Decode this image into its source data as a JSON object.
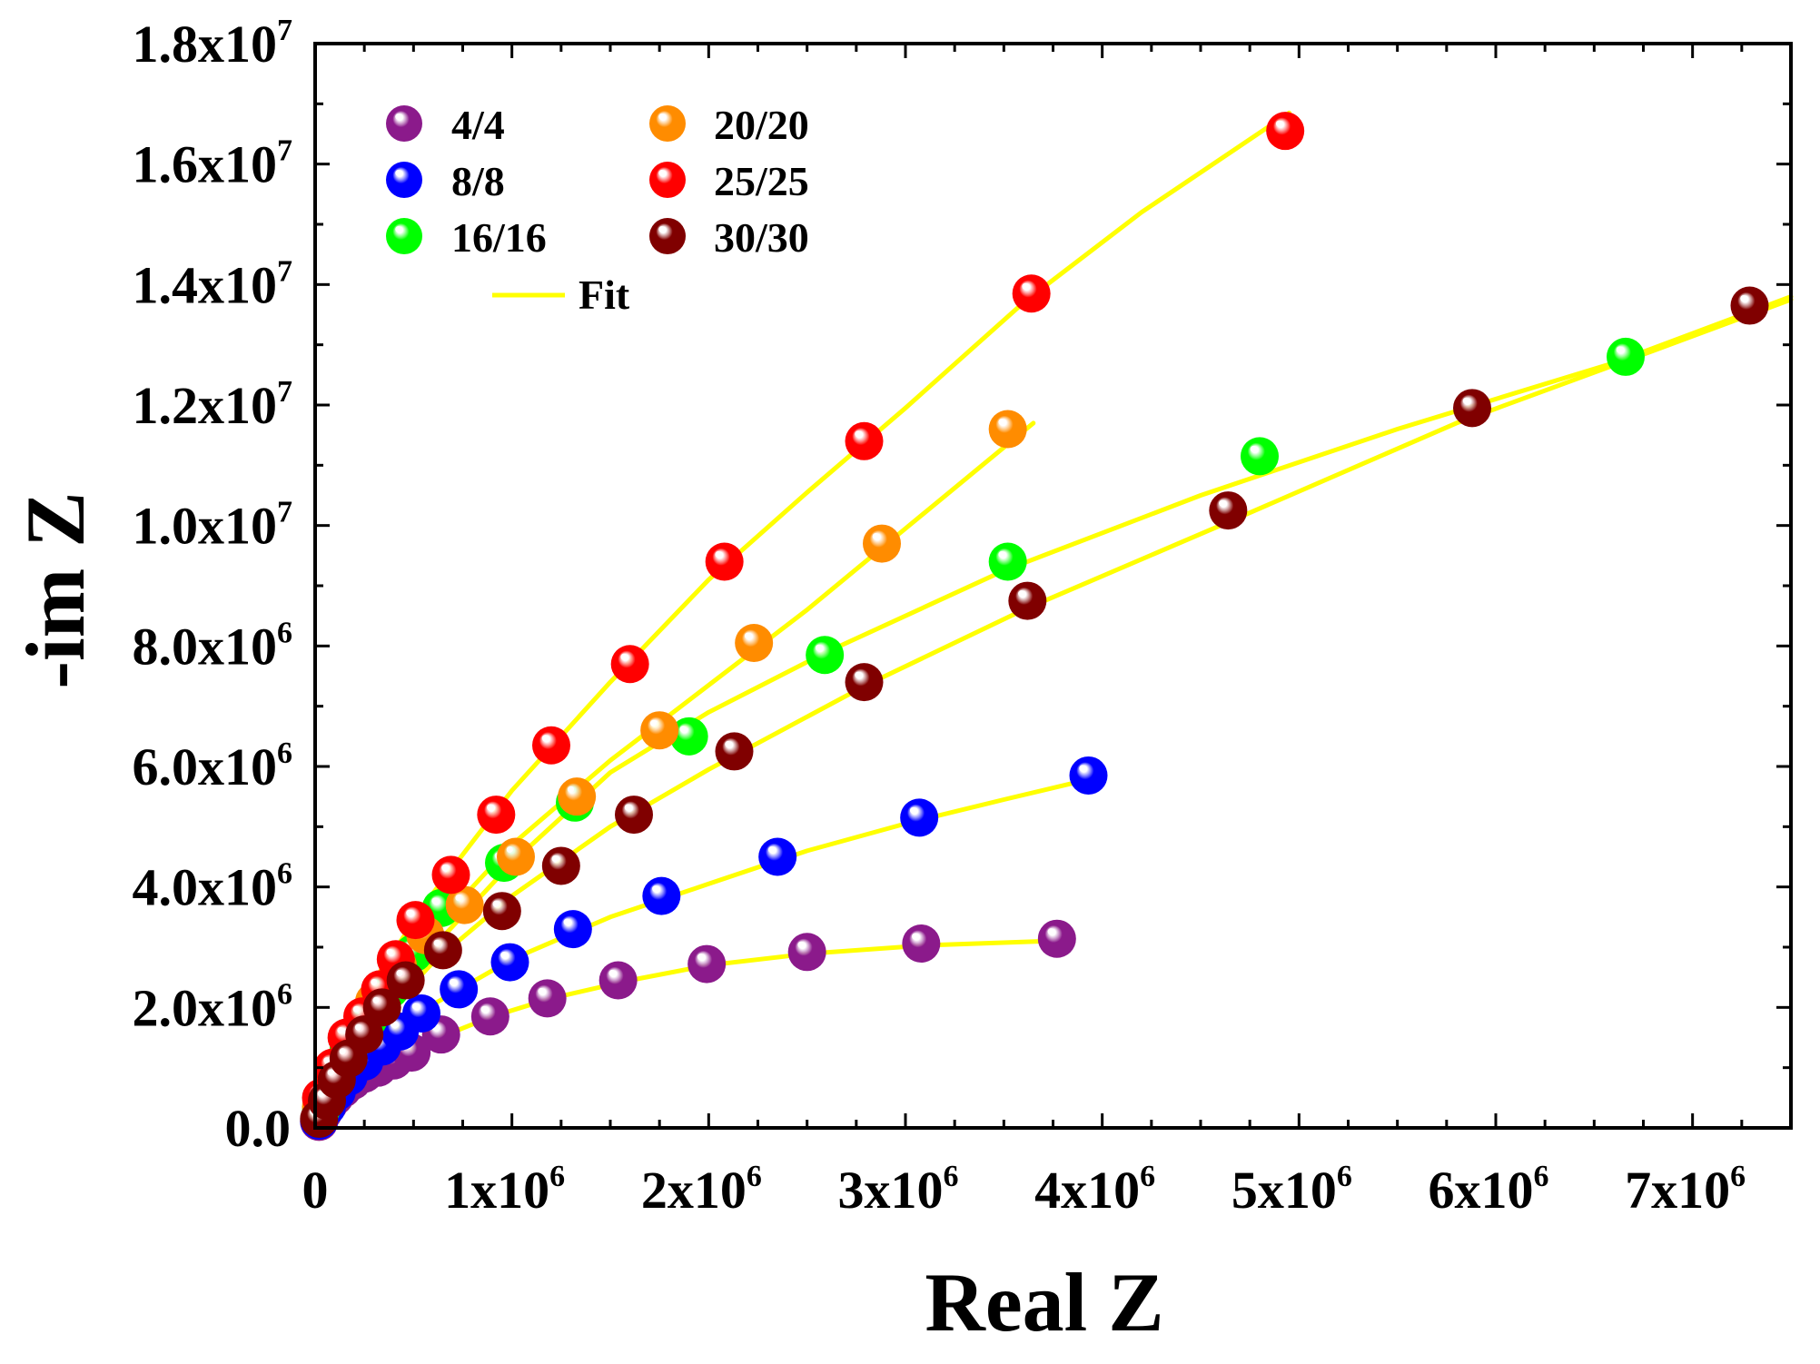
{
  "chart_data": {
    "type": "scatter",
    "title": "",
    "xlabel": "Real Z",
    "ylabel": "-im Z",
    "xlim": [
      0,
      7500000
    ],
    "ylim": [
      0,
      18000000
    ],
    "grid": false,
    "legend_position": "top-left",
    "x_tick_labels": [
      {
        "value": 0,
        "mant": "0",
        "exp": ""
      },
      {
        "value": 1000000,
        "mant": "1x10",
        "exp": "6"
      },
      {
        "value": 2000000,
        "mant": "2x10",
        "exp": "6"
      },
      {
        "value": 3000000,
        "mant": "3x10",
        "exp": "6"
      },
      {
        "value": 4000000,
        "mant": "4x10",
        "exp": "6"
      },
      {
        "value": 5000000,
        "mant": "5x10",
        "exp": "6"
      },
      {
        "value": 6000000,
        "mant": "6x10",
        "exp": "6"
      },
      {
        "value": 7000000,
        "mant": "7x10",
        "exp": "6"
      }
    ],
    "y_tick_labels": [
      {
        "value": 0,
        "mant": "0.0",
        "exp": ""
      },
      {
        "value": 2000000,
        "mant": "2.0x10",
        "exp": "6"
      },
      {
        "value": 4000000,
        "mant": "4.0x10",
        "exp": "6"
      },
      {
        "value": 6000000,
        "mant": "6.0x10",
        "exp": "6"
      },
      {
        "value": 8000000,
        "mant": "8.0x10",
        "exp": "6"
      },
      {
        "value": 10000000,
        "mant": "1.0x10",
        "exp": "7"
      },
      {
        "value": 12000000,
        "mant": "1.2x10",
        "exp": "7"
      },
      {
        "value": 14000000,
        "mant": "1.4x10",
        "exp": "7"
      },
      {
        "value": 16000000,
        "mant": "1.6x10",
        "exp": "7"
      },
      {
        "value": 18000000,
        "mant": "1.8x10",
        "exp": "7"
      }
    ],
    "fit": {
      "name": "Fit",
      "color": "#FFFF00"
    },
    "series": [
      {
        "name": "4/4",
        "color": "#8B1A8B",
        "points": [
          [
            20000,
            100000
          ],
          [
            40000,
            250000
          ],
          [
            70000,
            400000
          ],
          [
            100000,
            520000
          ],
          [
            140000,
            650000
          ],
          [
            190000,
            780000
          ],
          [
            250000,
            900000
          ],
          [
            320000,
            1000000
          ],
          [
            400000,
            1120000
          ],
          [
            490000,
            1250000
          ],
          [
            640000,
            1550000
          ],
          [
            890000,
            1850000
          ],
          [
            1180000,
            2150000
          ],
          [
            1540000,
            2450000
          ],
          [
            1990000,
            2720000
          ],
          [
            2500000,
            2920000
          ],
          [
            3080000,
            3060000
          ],
          [
            3770000,
            3140000
          ]
        ],
        "fit": [
          [
            0,
            0
          ],
          [
            100000,
            520000
          ],
          [
            300000,
            1000000
          ],
          [
            600000,
            1460000
          ],
          [
            900000,
            1850000
          ],
          [
            1200000,
            2150000
          ],
          [
            1600000,
            2450000
          ],
          [
            2000000,
            2700000
          ],
          [
            2500000,
            2890000
          ],
          [
            3100000,
            3030000
          ],
          [
            3700000,
            3100000
          ]
        ]
      },
      {
        "name": "8/8",
        "color": "#0000FF",
        "points": [
          [
            20000,
            120000
          ],
          [
            60000,
            350000
          ],
          [
            110000,
            600000
          ],
          [
            170000,
            850000
          ],
          [
            250000,
            1100000
          ],
          [
            340000,
            1350000
          ],
          [
            430000,
            1600000
          ],
          [
            540000,
            1900000
          ],
          [
            730000,
            2300000
          ],
          [
            990000,
            2750000
          ],
          [
            1310000,
            3300000
          ],
          [
            1760000,
            3850000
          ],
          [
            2350000,
            4500000
          ],
          [
            3070000,
            5150000
          ],
          [
            3930000,
            5850000
          ]
        ],
        "fit": [
          [
            0,
            0
          ],
          [
            100000,
            620000
          ],
          [
            300000,
            1350000
          ],
          [
            600000,
            2050000
          ],
          [
            1000000,
            2800000
          ],
          [
            1500000,
            3500000
          ],
          [
            2000000,
            4050000
          ],
          [
            2500000,
            4600000
          ],
          [
            3000000,
            5050000
          ],
          [
            3500000,
            5450000
          ],
          [
            3950000,
            5800000
          ]
        ]
      },
      {
        "name": "16/16",
        "color": "#00FF00",
        "points": [
          [
            30000,
            300000
          ],
          [
            90000,
            800000
          ],
          [
            170000,
            1300000
          ],
          [
            270000,
            1800000
          ],
          [
            380000,
            2300000
          ],
          [
            500000,
            2900000
          ],
          [
            640000,
            3650000
          ],
          [
            960000,
            4400000
          ],
          [
            1320000,
            5400000
          ],
          [
            1900000,
            6500000
          ],
          [
            2590000,
            7850000
          ],
          [
            3520000,
            9400000
          ],
          [
            4800000,
            11150000
          ],
          [
            6660000,
            12800000
          ]
        ],
        "fit": [
          [
            0,
            0
          ],
          [
            100000,
            880000
          ],
          [
            300000,
            1900000
          ],
          [
            600000,
            3000000
          ],
          [
            1000000,
            4400000
          ],
          [
            1500000,
            5900000
          ],
          [
            2000000,
            6900000
          ],
          [
            2600000,
            7900000
          ],
          [
            3500000,
            9250000
          ],
          [
            4500000,
            10500000
          ],
          [
            5500000,
            11600000
          ],
          [
            6600000,
            12700000
          ],
          [
            7500000,
            13800000
          ]
        ]
      },
      {
        "name": "20/20",
        "color": "#FF8C00",
        "points": [
          [
            30000,
            350000
          ],
          [
            100000,
            900000
          ],
          [
            190000,
            1500000
          ],
          [
            300000,
            2100000
          ],
          [
            420000,
            2700000
          ],
          [
            560000,
            3200000
          ],
          [
            760000,
            3700000
          ],
          [
            1020000,
            4500000
          ],
          [
            1330000,
            5500000
          ],
          [
            1750000,
            6600000
          ],
          [
            2230000,
            8050000
          ],
          [
            2880000,
            9700000
          ],
          [
            3520000,
            11600000
          ]
        ],
        "fit": [
          [
            0,
            0
          ],
          [
            100000,
            940000
          ],
          [
            300000,
            2050000
          ],
          [
            600000,
            3300000
          ],
          [
            1000000,
            4700000
          ],
          [
            1500000,
            6100000
          ],
          [
            2000000,
            7350000
          ],
          [
            2500000,
            8600000
          ],
          [
            3000000,
            9950000
          ],
          [
            3650000,
            11700000
          ]
        ]
      },
      {
        "name": "25/25",
        "color": "#FF0000",
        "points": [
          [
            30000,
            500000
          ],
          [
            90000,
            1000000
          ],
          [
            160000,
            1500000
          ],
          [
            240000,
            1850000
          ],
          [
            330000,
            2300000
          ],
          [
            410000,
            2800000
          ],
          [
            510000,
            3450000
          ],
          [
            690000,
            4200000
          ],
          [
            920000,
            5200000
          ],
          [
            1200000,
            6350000
          ],
          [
            1600000,
            7700000
          ],
          [
            2080000,
            9400000
          ],
          [
            2790000,
            11400000
          ],
          [
            3640000,
            13850000
          ],
          [
            4930000,
            16550000
          ]
        ],
        "fit": [
          [
            0,
            0
          ],
          [
            100000,
            1100000
          ],
          [
            300000,
            2450000
          ],
          [
            600000,
            3900000
          ],
          [
            1000000,
            5600000
          ],
          [
            1500000,
            7400000
          ],
          [
            2000000,
            9100000
          ],
          [
            2500000,
            10550000
          ],
          [
            3000000,
            11950000
          ],
          [
            3600000,
            13700000
          ],
          [
            4200000,
            15200000
          ],
          [
            4950000,
            16850000
          ]
        ]
      },
      {
        "name": "30/30",
        "color": "#800000",
        "points": [
          [
            20000,
            150000
          ],
          [
            60000,
            450000
          ],
          [
            110000,
            800000
          ],
          [
            170000,
            1150000
          ],
          [
            250000,
            1550000
          ],
          [
            340000,
            2000000
          ],
          [
            460000,
            2450000
          ],
          [
            650000,
            2950000
          ],
          [
            950000,
            3600000
          ],
          [
            1250000,
            4350000
          ],
          [
            1620000,
            5200000
          ],
          [
            2130000,
            6250000
          ],
          [
            2790000,
            7400000
          ],
          [
            3620000,
            8750000
          ],
          [
            4640000,
            10250000
          ],
          [
            5880000,
            11950000
          ],
          [
            7290000,
            13650000
          ]
        ],
        "fit": [
          [
            0,
            0
          ],
          [
            100000,
            780000
          ],
          [
            300000,
            1700000
          ],
          [
            600000,
            2750000
          ],
          [
            1000000,
            3850000
          ],
          [
            1500000,
            5000000
          ],
          [
            2000000,
            5950000
          ],
          [
            2800000,
            7350000
          ],
          [
            3600000,
            8600000
          ],
          [
            4600000,
            10000000
          ],
          [
            5800000,
            11700000
          ],
          [
            6800000,
            12900000
          ],
          [
            7500000,
            13750000
          ]
        ]
      }
    ]
  }
}
